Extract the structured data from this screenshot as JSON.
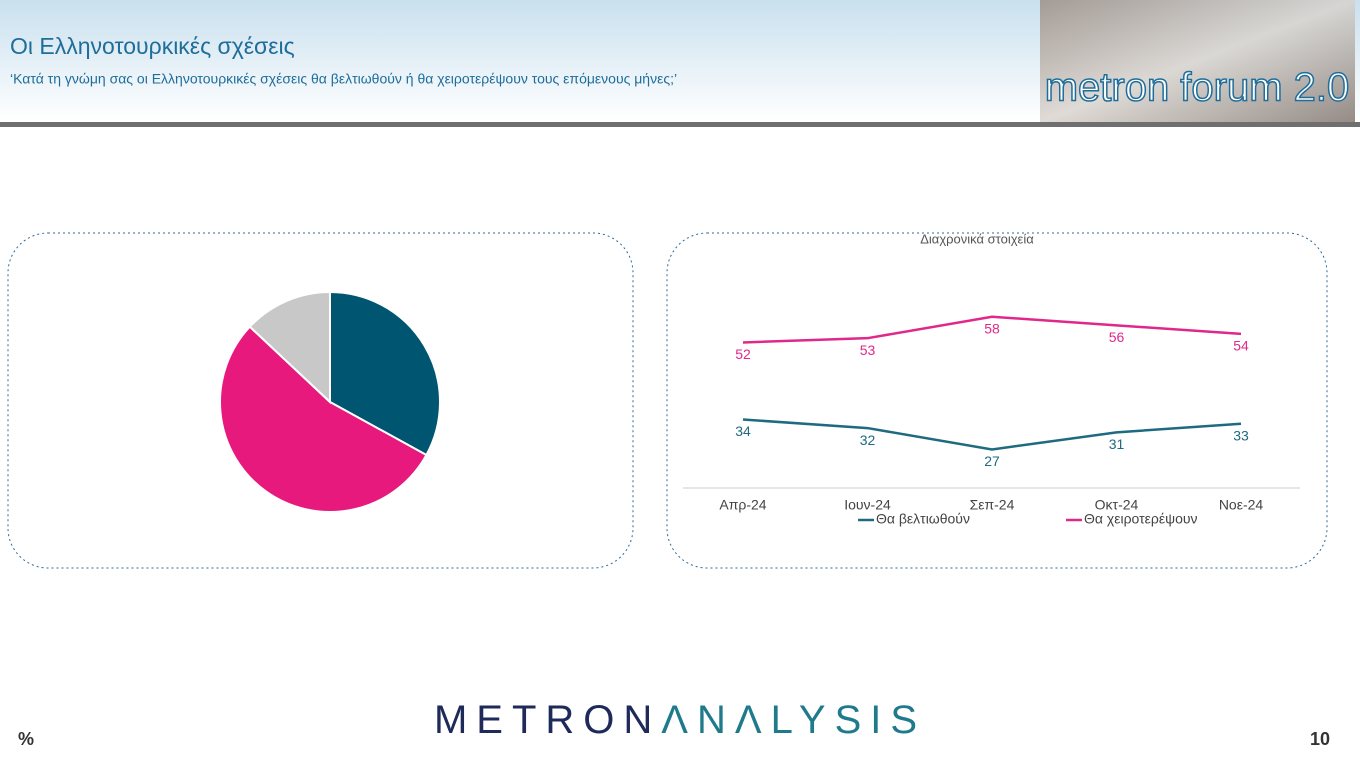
{
  "header": {
    "title": "Οι Ελληνοτουρκικές σχέσεις",
    "subtitle": "‘Κατά τη γνώμη σας οι Ελληνοτουρκικές σχέσεις θα βελτιωθούν ή θα χειροτερέψουν τους επόμενους μήνες;’",
    "logo": "metron forum 2.0"
  },
  "chart_data": [
    {
      "type": "pie",
      "values": [
        33,
        54,
        13
      ],
      "colors": [
        "#005670",
        "#e8197d",
        "#c8c8c8"
      ]
    },
    {
      "type": "line",
      "title": "Διαχρονικά στοιχεία",
      "categories": [
        "Απρ-24",
        "Ιουν-24",
        "Σεπ-24",
        "Οκτ-24",
        "Νοε-24"
      ],
      "series": [
        {
          "name": "Θα βελτιωθούν",
          "color": "#1e6a80",
          "values": [
            34,
            32,
            27,
            31,
            33
          ]
        },
        {
          "name": "Θα χειροτερέψουν",
          "color": "#e0288a",
          "values": [
            52,
            53,
            58,
            56,
            54
          ]
        }
      ],
      "ylim": [
        18,
        75
      ]
    }
  ],
  "footer": {
    "unit": "%",
    "brand_left": "METRON",
    "brand_right": "ΛNΛLYSIS",
    "page": "10"
  }
}
